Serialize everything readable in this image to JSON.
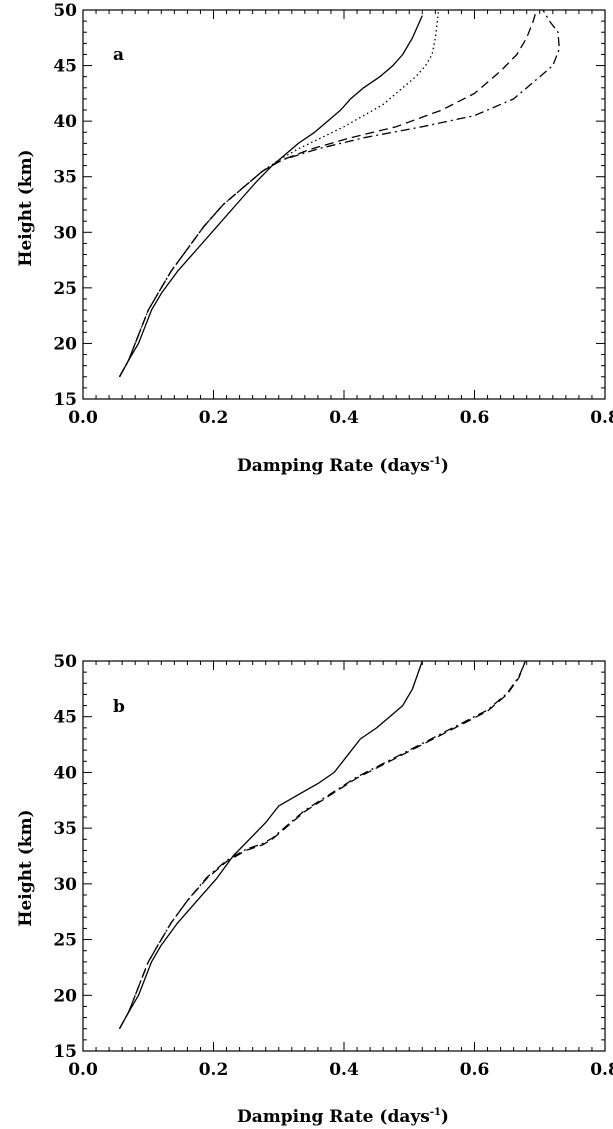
{
  "chart_data": [
    {
      "type": "line",
      "panel_label": "a",
      "xlabel": "Damping Rate (days",
      "xlabel_sup": "-1",
      "xlabel_end": ")",
      "ylabel": "Height (km)",
      "xlim": [
        0.0,
        0.8
      ],
      "ylim": [
        15,
        50
      ],
      "x_ticks": [
        "0.0",
        "0.2",
        "0.4",
        "0.6",
        "0.8"
      ],
      "y_ticks": [
        "15",
        "20",
        "25",
        "30",
        "35",
        "40",
        "45",
        "50"
      ],
      "grid": false,
      "series": [
        {
          "style": "solid",
          "x": [
            0.056,
            0.07,
            0.085,
            0.095,
            0.105,
            0.12,
            0.145,
            0.175,
            0.205,
            0.235,
            0.265,
            0.29,
            0.31,
            0.33,
            0.355,
            0.375,
            0.395,
            0.41,
            0.43,
            0.455,
            0.475,
            0.49,
            0.505,
            0.52
          ],
          "y": [
            17,
            18.5,
            20,
            21.5,
            23,
            24.5,
            26.5,
            28.5,
            30.5,
            32.5,
            34.5,
            36,
            37,
            38,
            39,
            40,
            41,
            42,
            43,
            44,
            45,
            46,
            47.5,
            49.5
          ]
        },
        {
          "style": "dotted",
          "x": [
            0.056,
            0.07,
            0.08,
            0.09,
            0.1,
            0.115,
            0.135,
            0.16,
            0.185,
            0.215,
            0.245,
            0.275,
            0.3,
            0.33,
            0.365,
            0.4,
            0.43,
            0.46,
            0.49,
            0.51,
            0.525,
            0.535,
            0.54,
            0.545
          ],
          "y": [
            17,
            18.5,
            20,
            21.5,
            23,
            24.5,
            26.5,
            28.5,
            30.5,
            32.5,
            34,
            35.5,
            36.5,
            37.5,
            38.5,
            39.5,
            40.5,
            41.5,
            43,
            44,
            45,
            46,
            47.5,
            50
          ]
        },
        {
          "style": "dashed",
          "x": [
            0.056,
            0.07,
            0.08,
            0.09,
            0.1,
            0.115,
            0.135,
            0.16,
            0.185,
            0.215,
            0.245,
            0.275,
            0.305,
            0.35,
            0.41,
            0.48,
            0.55,
            0.6,
            0.64,
            0.665,
            0.68,
            0.69,
            0.695
          ],
          "y": [
            17,
            18.5,
            20,
            21.5,
            23,
            24.5,
            26.5,
            28.5,
            30.5,
            32.5,
            34,
            35.5,
            36.5,
            37.5,
            38.5,
            39.5,
            41,
            42.5,
            44.5,
            46,
            47.5,
            49,
            50
          ]
        },
        {
          "style": "dash-dot",
          "x": [
            0.056,
            0.07,
            0.08,
            0.09,
            0.1,
            0.115,
            0.135,
            0.16,
            0.185,
            0.215,
            0.245,
            0.275,
            0.305,
            0.36,
            0.43,
            0.52,
            0.6,
            0.66,
            0.7,
            0.72,
            0.73,
            0.728,
            0.715,
            0.705
          ],
          "y": [
            17,
            18.5,
            20,
            21.5,
            23,
            24.5,
            26.5,
            28.5,
            30.5,
            32.5,
            34,
            35.5,
            36.5,
            37.5,
            38.5,
            39.5,
            40.5,
            42,
            44,
            45,
            46.5,
            48,
            49,
            50
          ]
        }
      ]
    },
    {
      "type": "line",
      "panel_label": "b",
      "xlabel": "Damping Rate (days",
      "xlabel_sup": "-1",
      "xlabel_end": ")",
      "ylabel": "Height (km)",
      "xlim": [
        0.0,
        0.8
      ],
      "ylim": [
        15,
        50
      ],
      "x_ticks": [
        "0.0",
        "0.2",
        "0.4",
        "0.6",
        "0.8"
      ],
      "y_ticks": [
        "15",
        "20",
        "25",
        "30",
        "35",
        "40",
        "45",
        "50"
      ],
      "grid": false,
      "series": [
        {
          "style": "solid",
          "x": [
            0.056,
            0.07,
            0.085,
            0.095,
            0.105,
            0.12,
            0.145,
            0.175,
            0.205,
            0.23,
            0.255,
            0.28,
            0.3,
            0.33,
            0.36,
            0.385,
            0.405,
            0.425,
            0.45,
            0.47,
            0.49,
            0.505,
            0.52
          ],
          "y": [
            17,
            18.5,
            20,
            21.5,
            23,
            24.5,
            26.5,
            28.5,
            30.5,
            32.5,
            34,
            35.5,
            37,
            38,
            39,
            40,
            41.5,
            43,
            44,
            45,
            46,
            47.5,
            50
          ]
        },
        {
          "style": "dashed",
          "x": [
            0.056,
            0.07,
            0.08,
            0.09,
            0.1,
            0.115,
            0.135,
            0.16,
            0.19,
            0.22,
            0.25,
            0.275,
            0.29,
            0.31,
            0.34,
            0.38,
            0.42,
            0.47,
            0.52,
            0.57,
            0.62,
            0.65,
            0.668,
            0.678
          ],
          "y": [
            17,
            18.5,
            20,
            21.5,
            23,
            24.5,
            26.5,
            28.5,
            30.5,
            32,
            33,
            33.5,
            34,
            35,
            36.5,
            38,
            39.5,
            41,
            42.5,
            44,
            45.5,
            47,
            48.5,
            50
          ]
        },
        {
          "style": "dash-dot",
          "x": [
            0.056,
            0.07,
            0.08,
            0.09,
            0.1,
            0.115,
            0.135,
            0.16,
            0.19,
            0.22,
            0.25,
            0.275,
            0.29,
            0.31,
            0.34,
            0.38,
            0.42,
            0.47,
            0.52,
            0.57,
            0.62,
            0.65,
            0.668,
            0.678
          ],
          "y": [
            17,
            18.5,
            20,
            21.5,
            23,
            24.5,
            26.5,
            28.5,
            30.6,
            32.1,
            33.1,
            33.6,
            34.1,
            35.1,
            36.6,
            38.1,
            39.6,
            41.1,
            42.6,
            44.1,
            45.6,
            47.1,
            48.6,
            50
          ]
        }
      ]
    }
  ]
}
